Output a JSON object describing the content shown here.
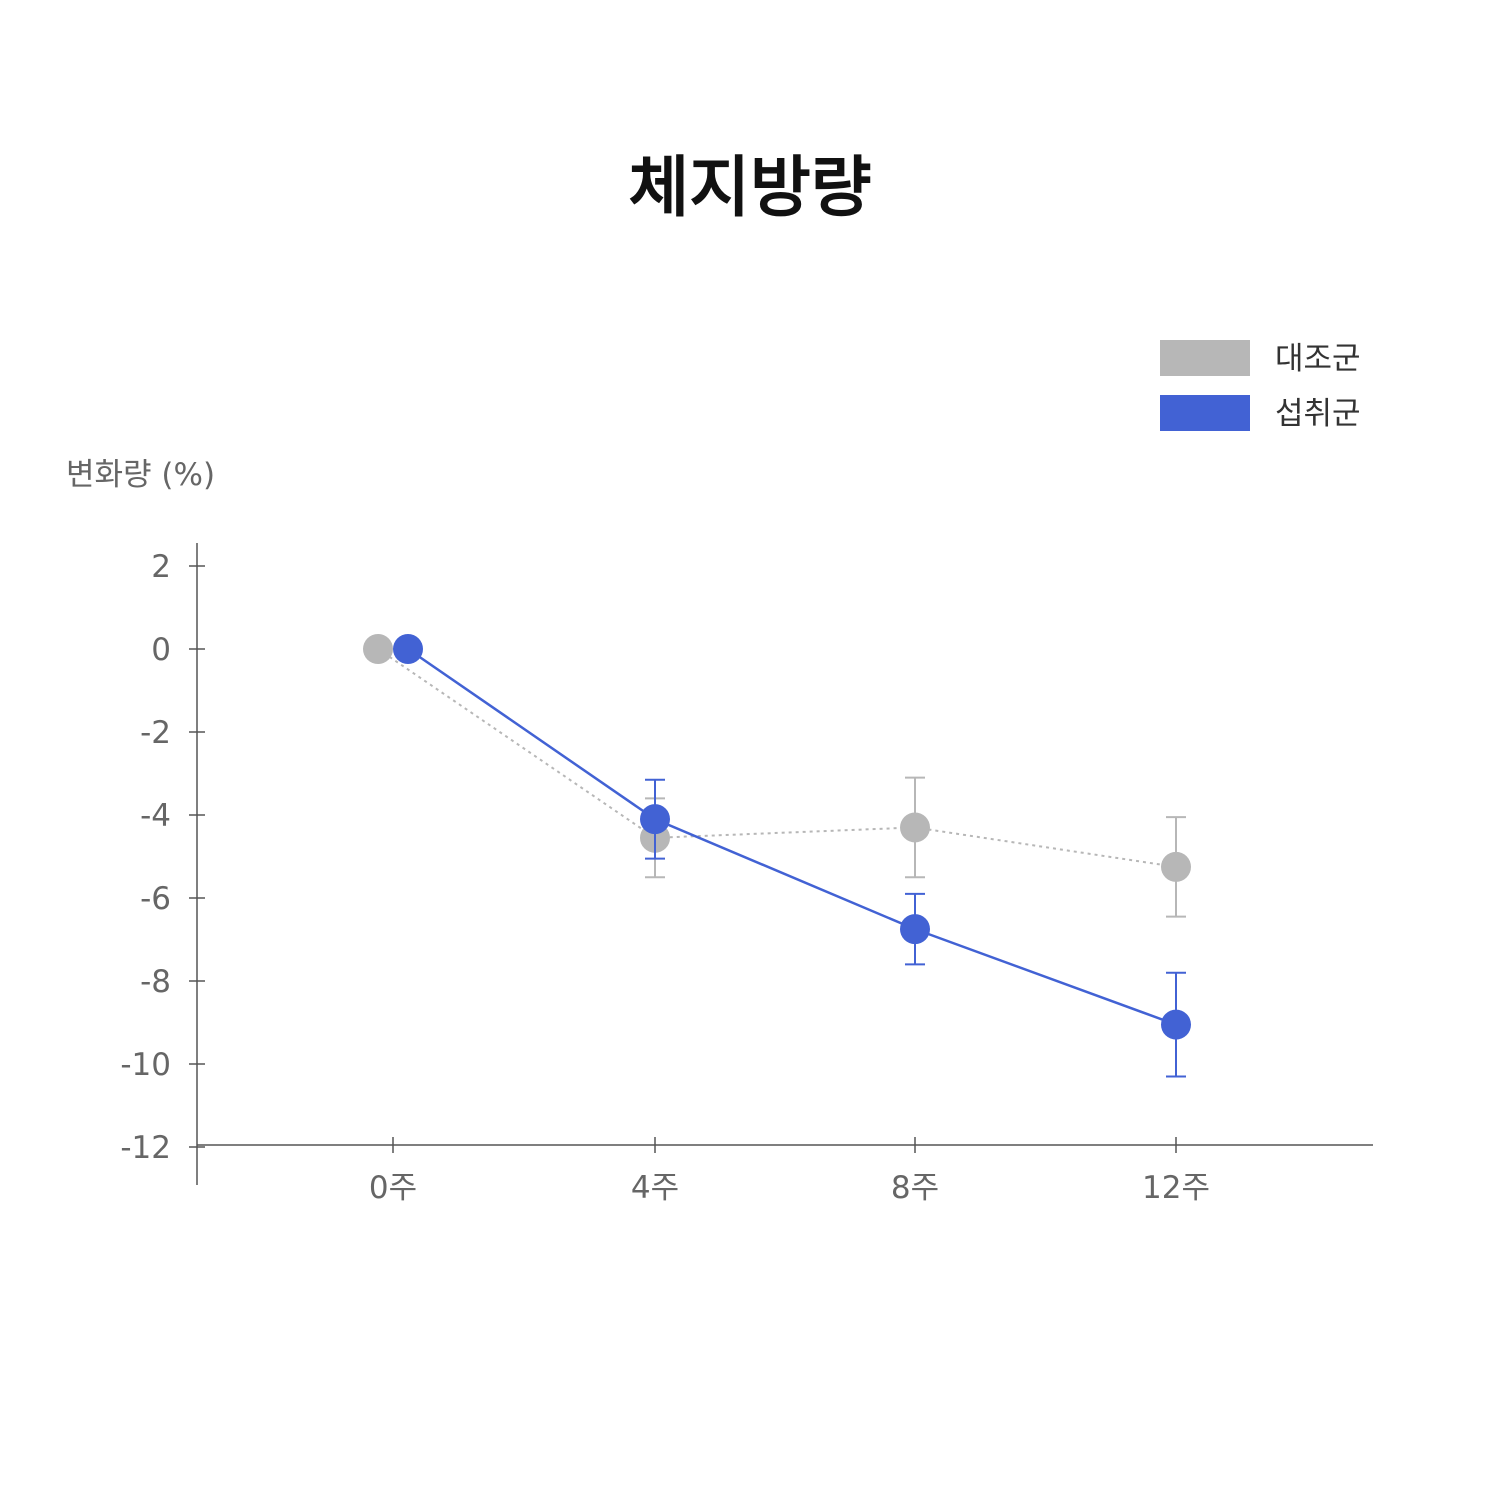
{
  "chart_data": {
    "type": "line",
    "title": "체지방량",
    "ylabel": "변화량 (%)",
    "xlabel": "",
    "categories": [
      "0주",
      "4주",
      "8주",
      "12주"
    ],
    "ylim": [
      -12,
      2
    ],
    "yticks": [
      2,
      0,
      -2,
      -4,
      -6,
      -8,
      -10,
      -12
    ],
    "grid": false,
    "legend_position": "top-right",
    "series": [
      {
        "name": "대조군",
        "color": "#b7b7b7",
        "line_style": "dotted",
        "values": [
          0,
          -4.55,
          -4.3,
          -5.25
        ],
        "error": [
          0,
          0.95,
          1.2,
          1.2
        ]
      },
      {
        "name": "섭취군",
        "color": "#4262d4",
        "line_style": "solid",
        "values": [
          0,
          -4.1,
          -6.75,
          -9.05
        ],
        "error": [
          0,
          0.95,
          0.85,
          1.25
        ]
      }
    ]
  }
}
